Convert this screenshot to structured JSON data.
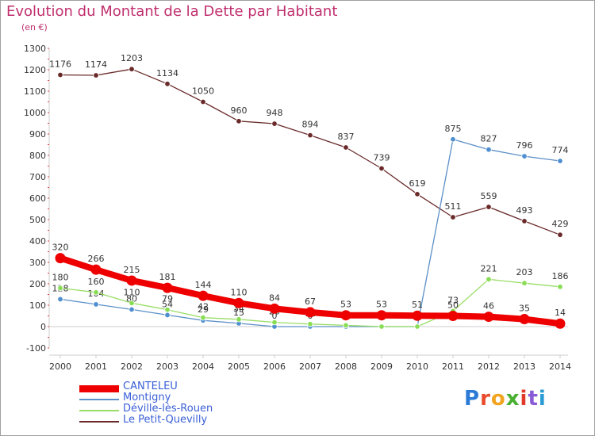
{
  "title": "Evolution du Montant de la Dette par Habitant",
  "subtitle": "(en €)",
  "logo_text": "Proxiti",
  "colors": {
    "title": "#c0306e",
    "CANTELEU": "#ee0000",
    "Montigny": "#5b8fc7",
    "Déville-lès-Rouen": "#99dd66",
    "Le Petit-Quevilly": "#6a2a2a"
  },
  "chart_data": {
    "type": "line",
    "title": "Evolution du Montant de la Dette par Habitant",
    "subtitle": "(en €)",
    "xlabel": "",
    "ylabel": "",
    "x": [
      "2000",
      "2001",
      "2002",
      "2003",
      "2004",
      "2005",
      "2006",
      "2007",
      "2008",
      "2009",
      "2010",
      "2011",
      "2012",
      "2013",
      "2014"
    ],
    "ylim": [
      -100,
      1300
    ],
    "yticks": [
      -100,
      0,
      100,
      200,
      300,
      400,
      500,
      600,
      700,
      800,
      900,
      1000,
      1100,
      1200,
      1300
    ],
    "grid": false,
    "legend_position": "bottom-left",
    "series": [
      {
        "name": "Le Petit-Quevilly",
        "values": [
          1176,
          1174,
          1203,
          1134,
          1050,
          960,
          948,
          894,
          837,
          739,
          619,
          511,
          559,
          493,
          429
        ],
        "labels": [
          "1176",
          "1174",
          "1203",
          "1134",
          "1050",
          "960",
          "948",
          "894",
          "837",
          "739",
          "619",
          "511",
          "559",
          "493",
          "429"
        ]
      },
      {
        "name": "Montigny",
        "values": [
          128,
          104,
          80,
          54,
          29,
          15,
          0,
          0,
          0,
          0,
          0,
          875,
          827,
          796,
          774
        ],
        "labels": [
          "128",
          "104",
          "80",
          "54",
          "29",
          "15",
          "0",
          "0",
          "0",
          "0",
          "",
          "875",
          "827",
          "796",
          "774"
        ]
      },
      {
        "name": "Déville-lès-Rouen",
        "values": [
          180,
          160,
          110,
          79,
          42,
          34,
          20,
          12,
          6,
          0,
          0,
          73,
          221,
          203,
          186
        ],
        "labels": [
          "180",
          "160",
          "110",
          "79",
          "42",
          "34",
          "20",
          "12",
          "6",
          "0",
          "",
          "73",
          "221",
          "203",
          "186"
        ]
      },
      {
        "name": "CANTELEU",
        "values": [
          320,
          266,
          215,
          181,
          144,
          110,
          84,
          67,
          53,
          53,
          51,
          50,
          46,
          35,
          14
        ],
        "labels": [
          "320",
          "266",
          "215",
          "181",
          "144",
          "110",
          "84",
          "67",
          "53",
          "53",
          "51",
          "50",
          "46",
          "35",
          "14"
        ]
      }
    ]
  }
}
